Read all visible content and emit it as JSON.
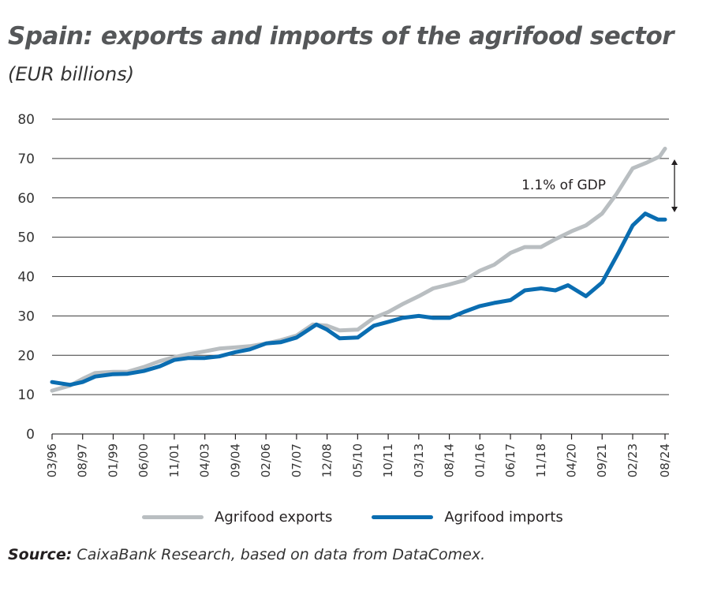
{
  "chart_data": {
    "type": "line",
    "title": "Spain: exports and imports of the agrifood sector",
    "subtitle": "(EUR billions)",
    "xlabel": "",
    "ylabel": "",
    "ylim": [
      0,
      80
    ],
    "yticks": [
      0,
      10,
      20,
      30,
      40,
      50,
      60,
      70,
      80
    ],
    "xticks": [
      "03/96",
      "08/97",
      "01/99",
      "06/00",
      "11/01",
      "04/03",
      "09/04",
      "02/06",
      "07/07",
      "12/08",
      "05/10",
      "10/11",
      "03/13",
      "08/14",
      "01/16",
      "06/17",
      "11/18",
      "04/20",
      "09/21",
      "02/23",
      "08/24"
    ],
    "grid": true,
    "legend_position": "bottom",
    "annotation": "1.1% of GDP",
    "series": [
      {
        "name": "Agrifood exports",
        "color": "#b9bec1",
        "points": [
          [
            "03/96",
            11
          ],
          [
            "01/97",
            12.3
          ],
          [
            "08/97",
            14
          ],
          [
            "03/98",
            15.5
          ],
          [
            "01/99",
            15.8
          ],
          [
            "09/99",
            15.8
          ],
          [
            "06/00",
            17
          ],
          [
            "03/01",
            18.5
          ],
          [
            "11/01",
            19.5
          ],
          [
            "07/02",
            20.3
          ],
          [
            "04/03",
            21
          ],
          [
            "12/03",
            21.7
          ],
          [
            "09/04",
            22
          ],
          [
            "05/05",
            22.3
          ],
          [
            "02/06",
            23
          ],
          [
            "10/06",
            23.8
          ],
          [
            "07/07",
            25
          ],
          [
            "04/08",
            27.8
          ],
          [
            "12/08",
            27.5
          ],
          [
            "07/09",
            26.3
          ],
          [
            "05/10",
            26.5
          ],
          [
            "02/11",
            29.5
          ],
          [
            "10/11",
            31
          ],
          [
            "06/12",
            33
          ],
          [
            "03/13",
            35
          ],
          [
            "11/13",
            37
          ],
          [
            "08/14",
            38
          ],
          [
            "04/15",
            39
          ],
          [
            "01/16",
            41.5
          ],
          [
            "09/16",
            43
          ],
          [
            "06/17",
            46
          ],
          [
            "02/18",
            47.5
          ],
          [
            "11/18",
            47.5
          ],
          [
            "07/19",
            49.5
          ],
          [
            "04/20",
            51.5
          ],
          [
            "12/20",
            53
          ],
          [
            "09/21",
            56
          ],
          [
            "05/22",
            61
          ],
          [
            "02/23",
            67.5
          ],
          [
            "10/23",
            69
          ],
          [
            "05/24",
            70.5
          ],
          [
            "08/24",
            72.5
          ]
        ]
      },
      {
        "name": "Agrifood imports",
        "color": "#0a6db1",
        "points": [
          [
            "03/96",
            13.2
          ],
          [
            "01/97",
            12.5
          ],
          [
            "08/97",
            13.2
          ],
          [
            "03/98",
            14.6
          ],
          [
            "01/99",
            15.2
          ],
          [
            "09/99",
            15.3
          ],
          [
            "06/00",
            16
          ],
          [
            "03/01",
            17.2
          ],
          [
            "11/01",
            18.8
          ],
          [
            "07/02",
            19.3
          ],
          [
            "04/03",
            19.3
          ],
          [
            "12/03",
            19.7
          ],
          [
            "09/04",
            20.8
          ],
          [
            "05/05",
            21.5
          ],
          [
            "02/06",
            23
          ],
          [
            "10/06",
            23.3
          ],
          [
            "07/07",
            24.5
          ],
          [
            "06/08",
            27.8
          ],
          [
            "12/08",
            26.5
          ],
          [
            "07/09",
            24.3
          ],
          [
            "05/10",
            24.5
          ],
          [
            "02/11",
            27.5
          ],
          [
            "10/11",
            28.5
          ],
          [
            "06/12",
            29.5
          ],
          [
            "03/13",
            30
          ],
          [
            "11/13",
            29.5
          ],
          [
            "08/14",
            29.5
          ],
          [
            "04/15",
            31
          ],
          [
            "01/16",
            32.5
          ],
          [
            "09/16",
            33.3
          ],
          [
            "06/17",
            34
          ],
          [
            "02/18",
            36.5
          ],
          [
            "11/18",
            37
          ],
          [
            "07/19",
            36.5
          ],
          [
            "02/20",
            37.8
          ],
          [
            "12/20",
            35
          ],
          [
            "09/21",
            38.5
          ],
          [
            "06/22",
            46
          ],
          [
            "02/23",
            53
          ],
          [
            "09/23",
            56
          ],
          [
            "04/24",
            54.5
          ],
          [
            "08/24",
            54.5
          ]
        ]
      }
    ]
  },
  "source": {
    "label": "Source:",
    "text": " CaixaBank Research, based on data from DataComex."
  }
}
